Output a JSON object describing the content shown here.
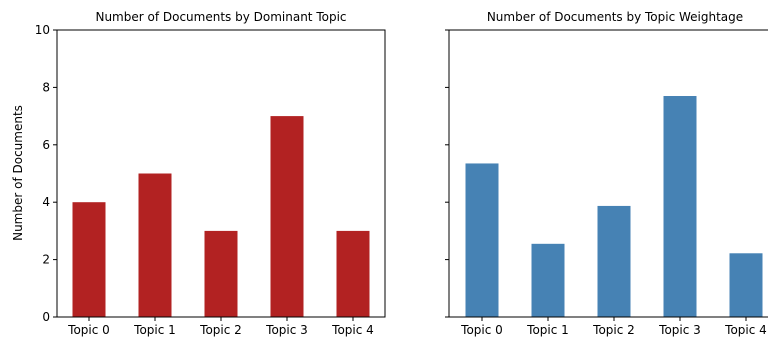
{
  "chart_data": [
    {
      "type": "bar",
      "title": "Number of Documents by Dominant Topic",
      "ylabel": "Number of Documents",
      "xlabel": "",
      "categories": [
        "Topic 0",
        "Topic 1",
        "Topic 2",
        "Topic 3",
        "Topic 4"
      ],
      "values": [
        4,
        5,
        3,
        7,
        3
      ],
      "ylim": [
        0,
        10
      ],
      "yticks": [
        "0",
        "2",
        "4",
        "6",
        "8",
        "10"
      ],
      "color": "#b22222",
      "grid": false
    },
    {
      "type": "bar",
      "title": "Number of Documents by Topic Weightage",
      "ylabel": "",
      "xlabel": "",
      "categories": [
        "Topic 0",
        "Topic 1",
        "Topic 2",
        "Topic 3",
        "Topic 4"
      ],
      "values": [
        5.35,
        2.55,
        3.87,
        7.7,
        2.22
      ],
      "ylim": [
        0,
        10
      ],
      "yticks": [],
      "color": "#4682b4",
      "grid": false
    }
  ]
}
